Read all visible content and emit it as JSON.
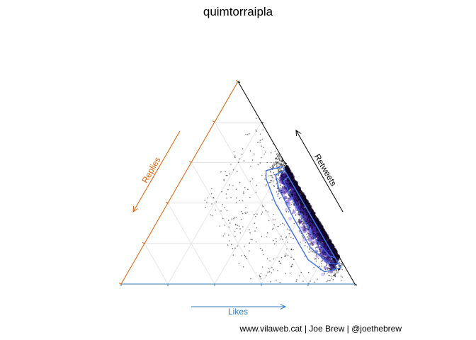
{
  "chart_data": {
    "type": "scatter",
    "subtype": "ternary",
    "title": "quimtorraipla",
    "axes": {
      "likes": {
        "label": "Likes",
        "color": "#2c7bb6"
      },
      "retweets": {
        "label": "Retweets",
        "color": "#000000"
      },
      "replies": {
        "label": "Replies",
        "color": "#d95f02"
      }
    },
    "grid": true,
    "points_color": "#000000",
    "density_fill": [
      "#e8e0ff",
      "#b9a4ee",
      "#7a5bd3",
      "#3b1f9e",
      "#150638"
    ],
    "contour_color": "#3d6fe0",
    "point_summary": "Dense concentration along the Likes–Retweets edge, roughly 40–85% likes, under 15% replies; sparse scatter elsewhere.",
    "caption": "www.vilaweb.cat | Joe Brew | @joethebrew"
  }
}
